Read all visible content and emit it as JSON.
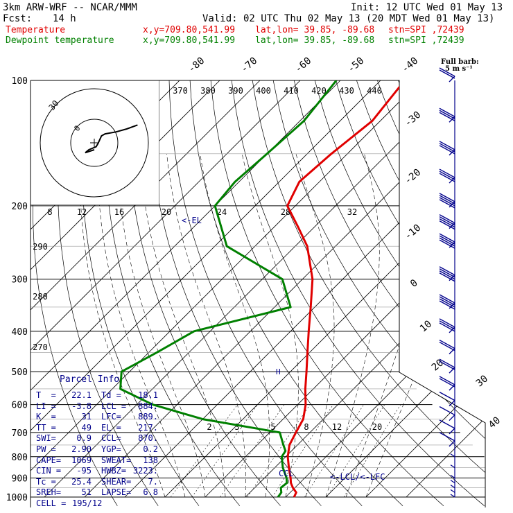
{
  "header": {
    "model": "3km ARW-WRF -- NCAR/MMM",
    "init": "Init: 12 UTC Wed 01 May 13",
    "fcst_label": "Fcst:",
    "fcst_value": "14 h",
    "valid": "Valid: 02 UTC Thu 02 May 13 (20 MDT Wed 01 May 13)"
  },
  "legend": [
    {
      "name": "Temperature",
      "color": "#e00000",
      "xy": "x,y=709.80,541.99",
      "latlon": "lat,lon= 39.85, -89.68",
      "stn": "stn=SPI ,72439"
    },
    {
      "name": "Dewpoint temperature",
      "color": "#008000",
      "xy": "x,y=709.80,541.99",
      "latlon": "lat,lon= 39.85, -89.68",
      "stn": "stn=SPI ,72439"
    }
  ],
  "barb_legend": {
    "title": "Full barb:",
    "value": "5 m s⁻¹"
  },
  "hodograph": {
    "units": "kts",
    "ring_label": "30",
    "inner_label": "0"
  },
  "parcel": {
    "title": "Parcel Info",
    "rows": [
      [
        "T  =",
        "22.1",
        "Td =",
        "18.1"
      ],
      [
        "LI =",
        "-3.8",
        "LCL =",
        "884."
      ],
      [
        "K  =",
        "31",
        "LFC=",
        "889."
      ],
      [
        "TT =",
        "49",
        "EL =",
        "217."
      ],
      [
        "SWI=",
        "0.9",
        "CCL=",
        "870."
      ],
      [
        "PW =",
        "2.90",
        "YGP=",
        "0.2"
      ],
      [
        "CAPE=",
        "1069",
        "SWEAT=",
        "138"
      ],
      [
        "CIN =",
        "-95",
        "HWBZ=",
        "3223."
      ],
      [
        "Tc =",
        "25.4",
        "SHEAR=",
        "7."
      ],
      [
        "SREH=",
        "51",
        "LAPSE=",
        "6.8"
      ],
      [
        "CELL =",
        "195/12",
        "",
        ""
      ]
    ]
  },
  "annotations": {
    "el": "<-EL",
    "lcl_lfc": "<-LCL/<-LFC",
    "ccl": "CCL",
    "hook": "H"
  },
  "chart_data": {
    "type": "line",
    "title": "",
    "xlabel": "",
    "ylabel": "",
    "y_scale": "log-pressure",
    "pressure_levels": [
      100,
      200,
      300,
      400,
      500,
      600,
      700,
      800,
      900,
      1000
    ],
    "isotherm_labels": [
      "-80",
      "-70",
      "-60",
      "-50",
      "-40",
      "-30",
      "-20",
      "-10",
      "0",
      "10",
      "20",
      "30",
      "40"
    ],
    "theta_labels": [
      "370",
      "380",
      "390",
      "400",
      "410",
      "420",
      "430",
      "440"
    ],
    "theta_left_labels": [
      "290",
      "280",
      "270"
    ],
    "mixing_ratio_labels": [
      "8",
      "12",
      "16",
      "20",
      "24",
      "28",
      "32"
    ],
    "mixing_ratio_low_labels": [
      "2",
      "3",
      "5",
      "8",
      "12",
      "20"
    ],
    "series": [
      {
        "name": "Temperature",
        "color": "#e00000",
        "points": [
          [
            1000,
            22.1
          ],
          [
            975,
            21.5
          ],
          [
            950,
            19.5
          ],
          [
            925,
            17.8
          ],
          [
            900,
            16.5
          ],
          [
            850,
            13.5
          ],
          [
            800,
            10.5
          ],
          [
            750,
            8.0
          ],
          [
            700,
            6.5
          ],
          [
            650,
            5.0
          ],
          [
            600,
            2.0
          ],
          [
            550,
            -2.0
          ],
          [
            500,
            -6.0
          ],
          [
            450,
            -10.5
          ],
          [
            400,
            -15.5
          ],
          [
            350,
            -21.0
          ],
          [
            300,
            -27.5
          ],
          [
            250,
            -37.0
          ],
          [
            225,
            -44.0
          ],
          [
            200,
            -52.0
          ],
          [
            175,
            -55.0
          ],
          [
            150,
            -54.0
          ],
          [
            125,
            -52.0
          ],
          [
            100,
            -54.0
          ]
        ]
      },
      {
        "name": "Dewpoint temperature",
        "color": "#008000",
        "points": [
          [
            1000,
            18.1
          ],
          [
            975,
            17.8
          ],
          [
            950,
            16.5
          ],
          [
            925,
            16.8
          ],
          [
            900,
            15.5
          ],
          [
            850,
            12.0
          ],
          [
            800,
            9.0
          ],
          [
            775,
            8.5
          ],
          [
            750,
            6.5
          ],
          [
            700,
            2.5
          ],
          [
            650,
            -20.0
          ],
          [
            600,
            -36.0
          ],
          [
            550,
            -48.0
          ],
          [
            500,
            -52.0
          ],
          [
            450,
            -48.0
          ],
          [
            400,
            -44.0
          ],
          [
            350,
            -26.0
          ],
          [
            300,
            -35.0
          ],
          [
            250,
            -57.0
          ],
          [
            200,
            -70.0
          ],
          [
            175,
            -71.0
          ],
          [
            150,
            -70.0
          ],
          [
            125,
            -69.0
          ],
          [
            100,
            -71.0
          ]
        ]
      }
    ],
    "hodograph_trace_kts": [
      [
        0,
        0
      ],
      [
        -5,
        -3
      ],
      [
        -3,
        0
      ],
      [
        1,
        3
      ],
      [
        2,
        6
      ],
      [
        3,
        10
      ],
      [
        4,
        14
      ],
      [
        6,
        16
      ],
      [
        12,
        18
      ],
      [
        18,
        21
      ],
      [
        24,
        25
      ]
    ],
    "wind_profile": {
      "levels": [
        1000,
        975,
        950,
        925,
        900,
        850,
        800,
        750,
        700,
        650,
        600,
        550,
        500,
        450,
        400,
        350,
        300,
        250,
        225,
        200,
        175,
        150,
        125,
        100
      ],
      "speed_ms": [
        2,
        2,
        3,
        3,
        3,
        4,
        4,
        5,
        5,
        6,
        6,
        8,
        10,
        12,
        14,
        18,
        20,
        22,
        20,
        18,
        16,
        15,
        13,
        12
      ],
      "dir_deg": [
        200,
        210,
        220,
        230,
        240,
        250,
        255,
        260,
        265,
        270,
        270,
        275,
        275,
        280,
        280,
        285,
        285,
        285,
        285,
        285,
        280,
        280,
        280,
        280
      ]
    }
  }
}
